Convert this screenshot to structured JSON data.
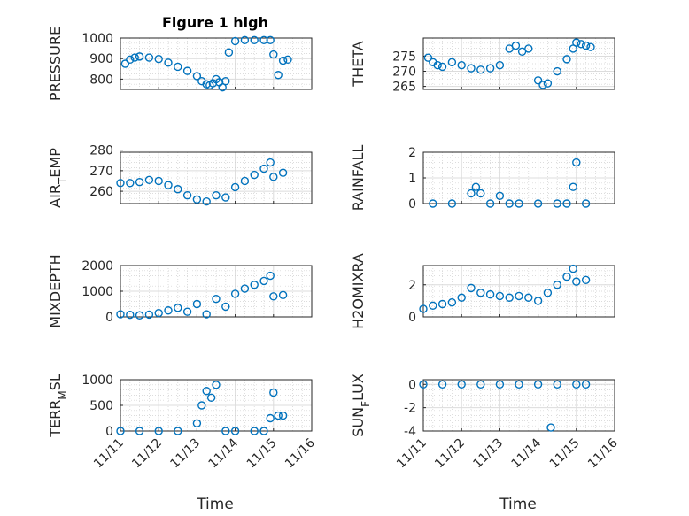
{
  "figure": {
    "title": "Figure 1 high",
    "marker_color": "#0072BD"
  },
  "chart_data": [
    {
      "id": "pressure",
      "type": "scatter",
      "ylabel": "PRESSURE",
      "ylim": [
        750,
        1000
      ],
      "yticks": [
        "1000",
        "900",
        "800"
      ],
      "ytick_values": [
        1000,
        900,
        800
      ],
      "x": [
        "11/11 03:00",
        "11/11 06:00",
        "11/11 09:00",
        "11/11 12:00",
        "11/11 18:00",
        "11/12 00:00",
        "11/12 06:00",
        "11/12 12:00",
        "11/12 18:00",
        "11/13 00:00",
        "11/13 03:00",
        "11/13 06:00",
        "11/13 08:00",
        "11/13 10:00",
        "11/13 12:00",
        "11/13 14:00",
        "11/13 16:00",
        "11/13 18:00",
        "11/13 20:00",
        "11/14 00:00",
        "11/14 06:00",
        "11/14 12:00",
        "11/14 18:00",
        "11/14 22:00",
        "11/15 00:00",
        "11/15 03:00",
        "11/15 06:00",
        "11/15 09:00"
      ],
      "y": [
        875,
        895,
        905,
        910,
        905,
        898,
        880,
        860,
        840,
        815,
        790,
        775,
        770,
        780,
        800,
        785,
        760,
        790,
        930,
        985,
        990,
        990,
        990,
        990,
        920,
        820,
        890,
        895
      ]
    },
    {
      "id": "theta",
      "type": "scatter",
      "ylabel": "THETA",
      "ylim": [
        264,
        281
      ],
      "yticks": [
        "275",
        "270",
        "265"
      ],
      "ytick_values": [
        275,
        270,
        265
      ],
      "x": [
        "11/11 03:00",
        "11/11 06:00",
        "11/11 09:00",
        "11/11 12:00",
        "11/11 18:00",
        "11/12 00:00",
        "11/12 06:00",
        "11/12 12:00",
        "11/12 18:00",
        "11/13 00:00",
        "11/13 06:00",
        "11/13 10:00",
        "11/13 14:00",
        "11/13 18:00",
        "11/14 00:00",
        "11/14 03:00",
        "11/14 06:00",
        "11/14 12:00",
        "11/14 18:00",
        "11/14 22:00",
        "11/15 00:00",
        "11/15 03:00",
        "11/15 06:00",
        "11/15 09:00"
      ],
      "y": [
        274.5,
        273,
        272,
        271.5,
        273,
        272,
        271,
        270.5,
        271,
        272,
        277.5,
        278.5,
        276.5,
        277.5,
        267,
        265.5,
        266,
        270,
        274,
        277.5,
        279.5,
        279,
        278.5,
        278
      ]
    },
    {
      "id": "air_temp",
      "type": "scatter",
      "ylabel": "AIR_TEMP",
      "ylim": [
        254,
        279
      ],
      "yticks": [
        "280",
        "270",
        "260"
      ],
      "ytick_values": [
        280,
        270,
        260
      ],
      "x": [
        "11/11 00:00",
        "11/11 06:00",
        "11/11 12:00",
        "11/11 18:00",
        "11/12 00:00",
        "11/12 06:00",
        "11/12 12:00",
        "11/12 18:00",
        "11/13 00:00",
        "11/13 06:00",
        "11/13 12:00",
        "11/13 18:00",
        "11/14 00:00",
        "11/14 06:00",
        "11/14 12:00",
        "11/14 18:00",
        "11/14 22:00",
        "11/15 00:00",
        "11/15 06:00"
      ],
      "y": [
        264,
        264,
        264.5,
        265.5,
        265,
        263,
        261,
        258,
        256,
        255,
        258,
        257,
        262,
        265,
        268,
        271,
        274,
        267,
        269
      ]
    },
    {
      "id": "rainfall",
      "type": "scatter",
      "ylabel": "RAINFALL",
      "ylim": [
        0,
        2
      ],
      "yticks": [
        "2",
        "1",
        "0"
      ],
      "ytick_values": [
        2,
        1,
        0
      ],
      "x": [
        "11/11 06:00",
        "11/11 18:00",
        "11/12 06:00",
        "11/12 09:00",
        "11/12 12:00",
        "11/12 18:00",
        "11/13 00:00",
        "11/13 06:00",
        "11/13 12:00",
        "11/14 00:00",
        "11/14 12:00",
        "11/14 18:00",
        "11/14 22:00",
        "11/15 00:00",
        "11/15 06:00"
      ],
      "y": [
        0,
        0,
        0.4,
        0.65,
        0.4,
        0,
        0.3,
        0,
        0,
        0,
        0,
        0,
        0.65,
        1.6,
        0
      ]
    },
    {
      "id": "mixdepth",
      "type": "scatter",
      "ylabel": "MIXDEPTH",
      "ylim": [
        0,
        2000
      ],
      "yticks": [
        "2000",
        "1000",
        "0"
      ],
      "ytick_values": [
        2000,
        1000,
        0
      ],
      "x": [
        "11/11 00:00",
        "11/11 06:00",
        "11/11 12:00",
        "11/11 18:00",
        "11/12 00:00",
        "11/12 06:00",
        "11/12 12:00",
        "11/12 18:00",
        "11/13 00:00",
        "11/13 06:00",
        "11/13 12:00",
        "11/13 18:00",
        "11/14 00:00",
        "11/14 06:00",
        "11/14 12:00",
        "11/14 18:00",
        "11/14 22:00",
        "11/15 00:00",
        "11/15 06:00"
      ],
      "y": [
        100,
        80,
        60,
        90,
        150,
        250,
        350,
        200,
        500,
        100,
        700,
        400,
        900,
        1100,
        1250,
        1400,
        1600,
        800,
        850
      ]
    },
    {
      "id": "h2omixra",
      "type": "scatter",
      "ylabel": "H2OMIXRA",
      "ylim": [
        0,
        3.2
      ],
      "yticks": [
        "2",
        "0"
      ],
      "ytick_values": [
        2,
        0
      ],
      "x": [
        "11/11 00:00",
        "11/11 06:00",
        "11/11 12:00",
        "11/11 18:00",
        "11/12 00:00",
        "11/12 06:00",
        "11/12 12:00",
        "11/12 18:00",
        "11/13 00:00",
        "11/13 06:00",
        "11/13 12:00",
        "11/13 18:00",
        "11/14 00:00",
        "11/14 06:00",
        "11/14 12:00",
        "11/14 18:00",
        "11/14 22:00",
        "11/15 00:00",
        "11/15 06:00"
      ],
      "y": [
        0.5,
        0.7,
        0.8,
        0.9,
        1.2,
        1.8,
        1.5,
        1.4,
        1.3,
        1.2,
        1.3,
        1.2,
        1.0,
        1.5,
        2.0,
        2.5,
        3.0,
        2.2,
        2.3
      ]
    },
    {
      "id": "terr_msl",
      "type": "scatter",
      "ylabel": "TERR_MSL",
      "ylim": [
        0,
        1000
      ],
      "yticks": [
        "1000",
        "500",
        "0"
      ],
      "ytick_values": [
        1000,
        500,
        0
      ],
      "x": [
        "11/11 00:00",
        "11/11 12:00",
        "11/12 00:00",
        "11/12 12:00",
        "11/13 00:00",
        "11/13 03:00",
        "11/13 06:00",
        "11/13 09:00",
        "11/13 12:00",
        "11/13 18:00",
        "11/14 00:00",
        "11/14 12:00",
        "11/14 18:00",
        "11/14 22:00",
        "11/15 00:00",
        "11/15 03:00",
        "11/15 06:00"
      ],
      "y": [
        0,
        0,
        0,
        0,
        150,
        500,
        780,
        650,
        900,
        0,
        0,
        0,
        0,
        250,
        750,
        300,
        300
      ]
    },
    {
      "id": "sun_flux",
      "type": "scatter",
      "ylabel": "SUN_FLUX",
      "ylim": [
        -4,
        0.4
      ],
      "yticks": [
        "0",
        "-2",
        "-4"
      ],
      "ytick_values": [
        0,
        -2,
        -4
      ],
      "x": [
        "11/11 00:00",
        "11/11 12:00",
        "11/12 00:00",
        "11/12 12:00",
        "11/13 00:00",
        "11/13 12:00",
        "11/14 00:00",
        "11/14 08:00",
        "11/14 12:00",
        "11/15 00:00",
        "11/15 06:00"
      ],
      "y": [
        0,
        0,
        0,
        0,
        0,
        0,
        0,
        -3.7,
        0,
        0,
        0
      ]
    }
  ],
  "x_axis": {
    "ticks": [
      "11/11",
      "11/12",
      "11/13",
      "11/14",
      "11/15",
      "11/16"
    ],
    "xlabel": "Time",
    "xlim": [
      "11/11",
      "11/16"
    ]
  }
}
